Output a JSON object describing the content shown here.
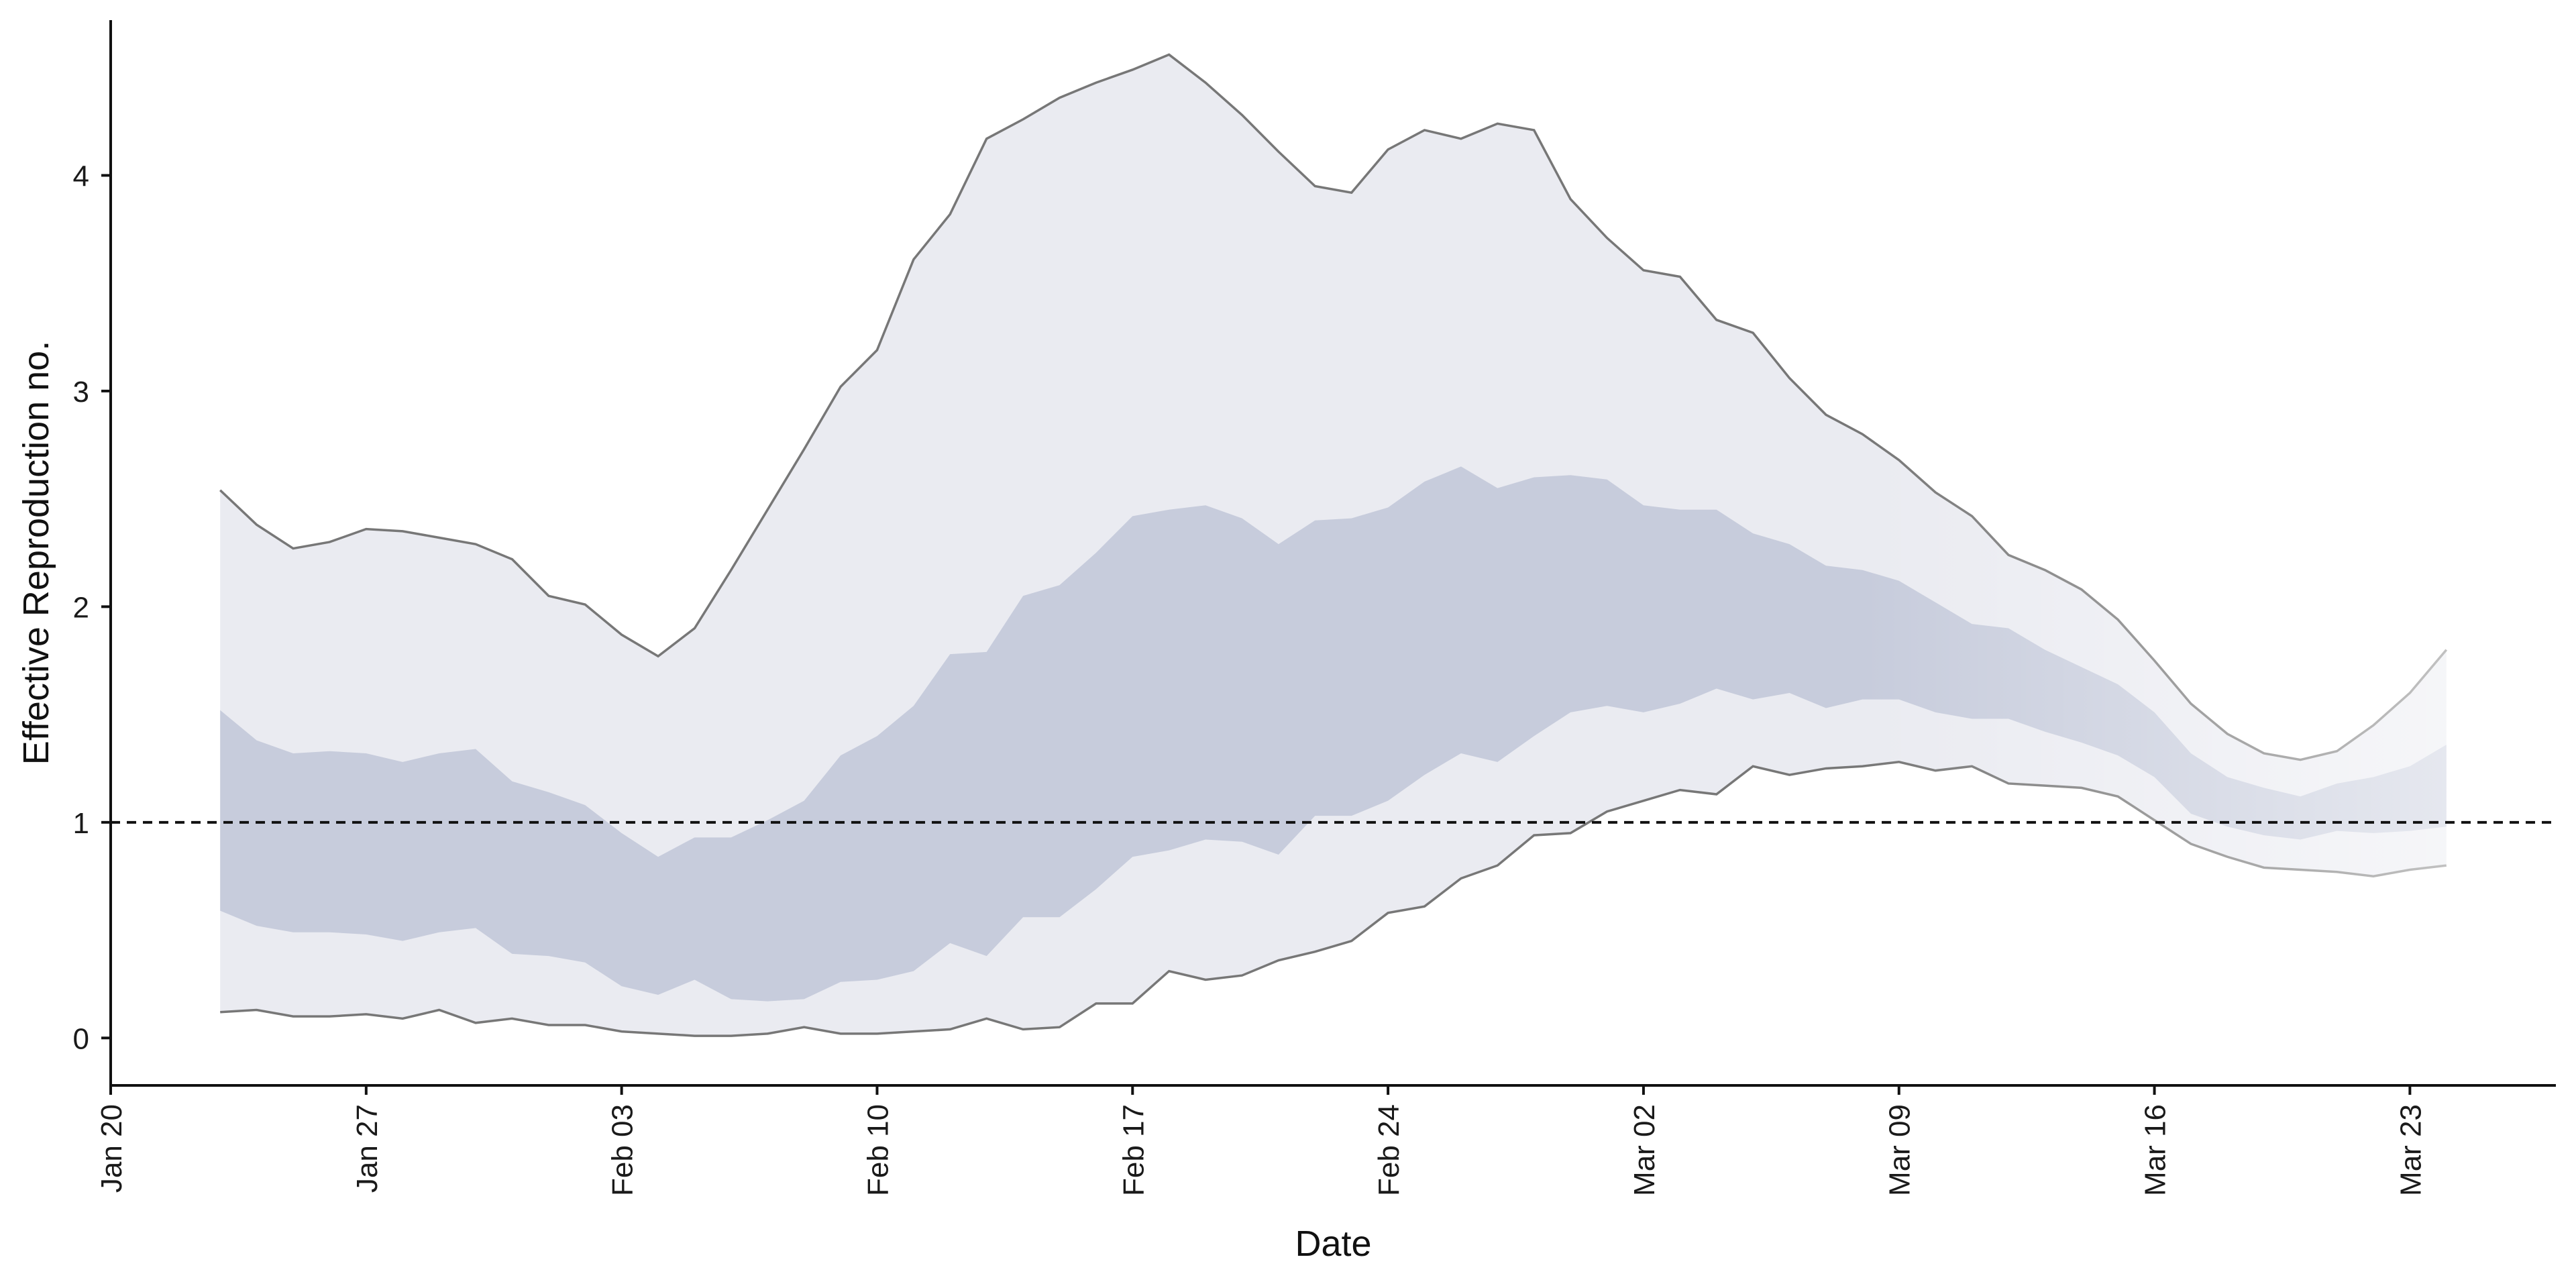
{
  "chart_data": {
    "type": "area",
    "xlabel": "Date",
    "ylabel": "Effective Reproduction no.",
    "ylim": [
      -0.22,
      4.72
    ],
    "xlim": [
      "2020-01-20",
      "2020-03-27"
    ],
    "yticks": [
      0,
      1,
      2,
      3,
      4
    ],
    "xticks": [
      {
        "date": "2020-01-20",
        "label": "Jan 20"
      },
      {
        "date": "2020-01-27",
        "label": "Jan 27"
      },
      {
        "date": "2020-02-03",
        "label": "Feb 03"
      },
      {
        "date": "2020-02-10",
        "label": "Feb 10"
      },
      {
        "date": "2020-02-17",
        "label": "Feb 17"
      },
      {
        "date": "2020-02-24",
        "label": "Feb 24"
      },
      {
        "date": "2020-03-02",
        "label": "Mar 02"
      },
      {
        "date": "2020-03-09",
        "label": "Mar 09"
      },
      {
        "date": "2020-03-16",
        "label": "Mar 16"
      },
      {
        "date": "2020-03-23",
        "label": "Mar 23"
      }
    ],
    "reference_line": {
      "y": 1,
      "style": "dashed"
    },
    "dates": [
      "2020-01-23",
      "2020-01-24",
      "2020-01-25",
      "2020-01-26",
      "2020-01-27",
      "2020-01-28",
      "2020-01-29",
      "2020-01-30",
      "2020-01-31",
      "2020-02-01",
      "2020-02-02",
      "2020-02-03",
      "2020-02-04",
      "2020-02-05",
      "2020-02-06",
      "2020-02-07",
      "2020-02-08",
      "2020-02-09",
      "2020-02-10",
      "2020-02-11",
      "2020-02-12",
      "2020-02-13",
      "2020-02-14",
      "2020-02-15",
      "2020-02-16",
      "2020-02-17",
      "2020-02-18",
      "2020-02-19",
      "2020-02-20",
      "2020-02-21",
      "2020-02-22",
      "2020-02-23",
      "2020-02-24",
      "2020-02-25",
      "2020-02-26",
      "2020-02-27",
      "2020-02-28",
      "2020-02-29",
      "2020-03-01",
      "2020-03-02",
      "2020-03-03",
      "2020-03-04",
      "2020-03-05",
      "2020-03-06",
      "2020-03-07",
      "2020-03-08",
      "2020-03-09",
      "2020-03-10",
      "2020-03-11",
      "2020-03-12",
      "2020-03-13",
      "2020-03-14",
      "2020-03-15",
      "2020-03-16",
      "2020-03-17",
      "2020-03-18",
      "2020-03-19",
      "2020-03-20",
      "2020-03-21",
      "2020-03-22",
      "2020-03-23",
      "2020-03-24"
    ],
    "outer_upper": [
      2.54,
      2.38,
      2.27,
      2.3,
      2.36,
      2.35,
      2.32,
      2.29,
      2.22,
      2.05,
      2.01,
      1.87,
      1.77,
      1.9,
      2.17,
      2.45,
      2.73,
      3.02,
      3.19,
      3.61,
      3.82,
      4.17,
      4.26,
      4.36,
      4.43,
      4.49,
      4.56,
      4.43,
      4.28,
      4.11,
      3.95,
      3.92,
      4.12,
      4.21,
      4.17,
      4.24,
      4.21,
      3.89,
      3.71,
      3.56,
      3.53,
      3.33,
      3.27,
      3.06,
      2.89,
      2.8,
      2.68,
      2.53,
      2.42,
      2.24,
      2.17,
      2.08,
      1.94,
      1.75,
      1.55,
      1.41,
      1.32,
      1.29,
      1.33,
      1.45,
      1.6,
      1.8
    ],
    "outer_lower": [
      0.12,
      0.13,
      0.1,
      0.1,
      0.11,
      0.09,
      0.13,
      0.07,
      0.09,
      0.06,
      0.06,
      0.03,
      0.02,
      0.01,
      0.01,
      0.02,
      0.05,
      0.02,
      0.02,
      0.03,
      0.04,
      0.09,
      0.04,
      0.05,
      0.16,
      0.16,
      0.31,
      0.27,
      0.29,
      0.36,
      0.4,
      0.45,
      0.58,
      0.61,
      0.74,
      0.8,
      0.94,
      0.95,
      1.05,
      1.1,
      1.15,
      1.13,
      1.26,
      1.22,
      1.25,
      1.26,
      1.28,
      1.24,
      1.26,
      1.18,
      1.17,
      1.16,
      1.12,
      1.01,
      0.9,
      0.84,
      0.79,
      0.78,
      0.77,
      0.75,
      0.78,
      0.8
    ],
    "inner_upper": [
      1.52,
      1.38,
      1.32,
      1.33,
      1.32,
      1.28,
      1.32,
      1.34,
      1.19,
      1.14,
      1.08,
      0.95,
      0.84,
      0.93,
      0.93,
      1.01,
      1.1,
      1.31,
      1.4,
      1.54,
      1.78,
      1.79,
      2.05,
      2.1,
      2.25,
      2.42,
      2.45,
      2.47,
      2.41,
      2.29,
      2.4,
      2.41,
      2.46,
      2.58,
      2.65,
      2.55,
      2.6,
      2.61,
      2.59,
      2.47,
      2.45,
      2.45,
      2.34,
      2.29,
      2.19,
      2.17,
      2.12,
      2.02,
      1.92,
      1.9,
      1.8,
      1.72,
      1.64,
      1.51,
      1.32,
      1.21,
      1.16,
      1.12,
      1.18,
      1.21,
      1.26,
      1.36
    ],
    "inner_lower": [
      0.59,
      0.52,
      0.49,
      0.49,
      0.48,
      0.45,
      0.49,
      0.51,
      0.39,
      0.38,
      0.35,
      0.24,
      0.2,
      0.27,
      0.18,
      0.17,
      0.18,
      0.26,
      0.27,
      0.31,
      0.44,
      0.38,
      0.56,
      0.56,
      0.69,
      0.84,
      0.87,
      0.92,
      0.91,
      0.85,
      1.03,
      1.03,
      1.1,
      1.22,
      1.32,
      1.28,
      1.4,
      1.51,
      1.54,
      1.51,
      1.55,
      1.62,
      1.57,
      1.6,
      1.53,
      1.57,
      1.57,
      1.51,
      1.48,
      1.48,
      1.42,
      1.37,
      1.31,
      1.21,
      1.04,
      0.98,
      0.94,
      0.92,
      0.96,
      0.95,
      0.96,
      0.98
    ],
    "colors": {
      "outer_band": "#eaebf1",
      "inner_band": "#c7ccdc",
      "bound_line": "#777777",
      "reference_line": "#111111",
      "axis": "#111111"
    }
  }
}
